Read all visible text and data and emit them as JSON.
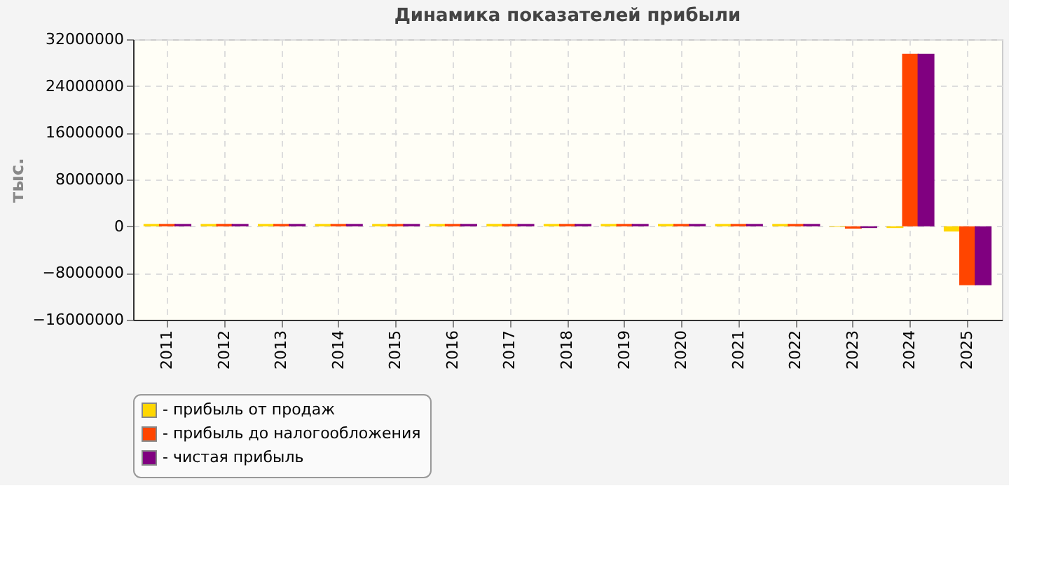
{
  "chart_data": {
    "type": "bar",
    "title": "Динамика показателей прибыли",
    "ylabel": "тыс.",
    "categories": [
      "2011",
      "2012",
      "2013",
      "2014",
      "2015",
      "2016",
      "2017",
      "2018",
      "2019",
      "2020",
      "2021",
      "2022",
      "2023",
      "2024",
      "2025"
    ],
    "series": [
      {
        "name": "- прибыль от продаж",
        "color": "#ffd700",
        "values": [
          400000,
          400000,
          400000,
          400000,
          400000,
          400000,
          400000,
          400000,
          400000,
          400000,
          400000,
          400000,
          -100000,
          -300000,
          -900000
        ]
      },
      {
        "name": "- прибыль до налогообложения",
        "color": "#ff4500",
        "values": [
          400000,
          400000,
          400000,
          400000,
          400000,
          400000,
          400000,
          400000,
          400000,
          400000,
          400000,
          400000,
          -400000,
          29500000,
          -10100000
        ]
      },
      {
        "name": "- чистая прибыль",
        "color": "#800080",
        "values": [
          400000,
          400000,
          400000,
          400000,
          400000,
          400000,
          400000,
          400000,
          400000,
          400000,
          400000,
          400000,
          -300000,
          29500000,
          -10100000
        ]
      }
    ],
    "ylim": [
      -16000000,
      32000000
    ],
    "yticks": [
      -16000000,
      -8000000,
      0,
      8000000,
      16000000,
      24000000,
      32000000
    ],
    "grid": true,
    "legend": "bottom"
  }
}
